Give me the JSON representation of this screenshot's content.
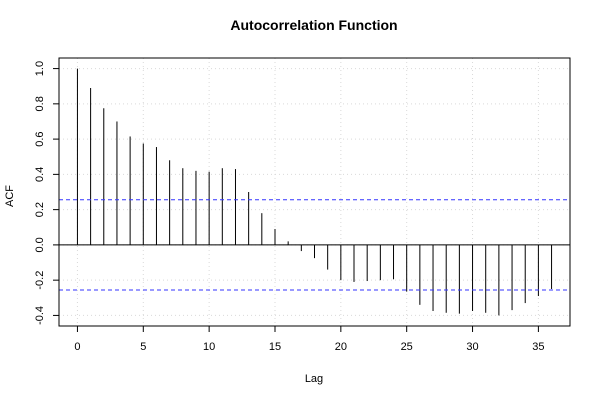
{
  "chart_data": {
    "type": "bar",
    "title": "Autocorrelation Function",
    "xlabel": "Lag",
    "ylabel": "ACF",
    "x": [
      0,
      1,
      2,
      3,
      4,
      5,
      6,
      7,
      8,
      9,
      10,
      11,
      12,
      13,
      14,
      15,
      16,
      17,
      18,
      19,
      20,
      21,
      22,
      23,
      24,
      25,
      26,
      27,
      28,
      29,
      30,
      31,
      32,
      33,
      34,
      35,
      36
    ],
    "values": [
      1.0,
      0.89,
      0.775,
      0.7,
      0.615,
      0.575,
      0.555,
      0.48,
      0.435,
      0.42,
      0.415,
      0.435,
      0.43,
      0.3,
      0.18,
      0.09,
      0.02,
      -0.035,
      -0.075,
      -0.14,
      -0.2,
      -0.21,
      -0.205,
      -0.2,
      -0.195,
      -0.265,
      -0.34,
      -0.375,
      -0.385,
      -0.39,
      -0.375,
      -0.385,
      -0.4,
      -0.37,
      -0.33,
      -0.29,
      -0.25
    ],
    "confidence_bound": 0.256,
    "xlim": [
      -1.4,
      37.4
    ],
    "ylim": [
      -0.46,
      1.06
    ],
    "x_ticks": [
      0,
      5,
      10,
      15,
      20,
      25,
      30,
      35
    ],
    "x_tick_labels": [
      "0",
      "5",
      "10",
      "15",
      "20",
      "25",
      "30",
      "35"
    ],
    "y_ticks": [
      -0.4,
      -0.2,
      0.0,
      0.2,
      0.4,
      0.6,
      0.8,
      1.0
    ],
    "y_tick_labels": [
      "-0.4",
      "-0.2",
      "0.0",
      "0.2",
      "0.4",
      "0.6",
      "0.8",
      "1.0"
    ],
    "grid": true,
    "colors": {
      "bars": "#000000",
      "confidence_lines": "#3333ff",
      "grid": "#d9d9d9",
      "frame": "#000000"
    }
  }
}
